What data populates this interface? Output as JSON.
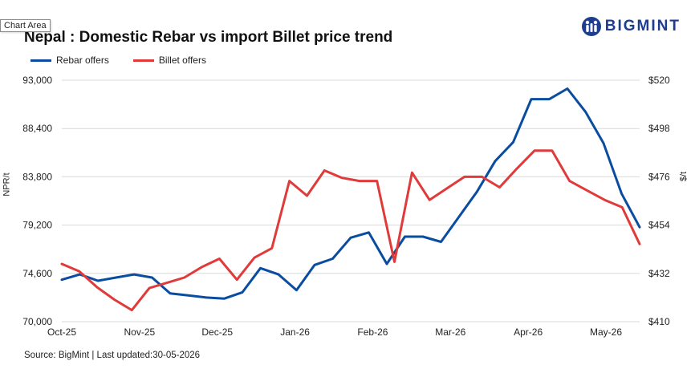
{
  "tooltip": "Chart Area",
  "logo_text": "BIGMINT",
  "source": "Source: BigMint | Last updated:30-05-2026",
  "colors": {
    "rebar": "#0a4ca0",
    "billet": "#e03a3a",
    "grid": "#d9d9d9",
    "brand": "#1d3d8f"
  },
  "chart_data": {
    "type": "line",
    "title": "Nepal : Domestic Rebar vs import Billet price trend",
    "ylabel_left": "NPR/t",
    "ylabel_right": "$/t",
    "ylim_left": [
      70000,
      93000
    ],
    "ylim_right": [
      410,
      520
    ],
    "left_ticks": [
      "70,000",
      "74,600",
      "79,200",
      "83,800",
      "88,400",
      "93,000"
    ],
    "right_ticks": [
      "$410",
      "$432",
      "$454",
      "$476",
      "$498",
      "$520"
    ],
    "x_labels": [
      "Oct-25",
      "Nov-25",
      "Dec-25",
      "Jan-26",
      "Feb-26",
      "Mar-26",
      "Apr-26",
      "May-26"
    ],
    "legend_position": "top-left",
    "grid": true,
    "series": [
      {
        "name": "Rebar offers",
        "axis": "left",
        "values": [
          74000,
          74500,
          73900,
          74200,
          74500,
          74200,
          72700,
          72500,
          72300,
          72200,
          72800,
          75100,
          74500,
          73000,
          75400,
          76000,
          78000,
          78500,
          75500,
          78100,
          78100,
          77600,
          80000,
          82400,
          85300,
          87100,
          91200,
          91200,
          92200,
          90000,
          87000,
          82200,
          79000
        ]
      },
      {
        "name": "Billet offers",
        "axis": "left",
        "values": [
          75500,
          74800,
          73300,
          72100,
          71100,
          73200,
          73700,
          74200,
          75200,
          76000,
          74000,
          76100,
          77000,
          83400,
          82000,
          84400,
          83700,
          83400,
          83400,
          75700,
          84200,
          81600,
          82700,
          83800,
          83800,
          82800,
          84600,
          86300,
          86300,
          83400,
          82500,
          81600,
          80900,
          77400
        ]
      }
    ]
  }
}
